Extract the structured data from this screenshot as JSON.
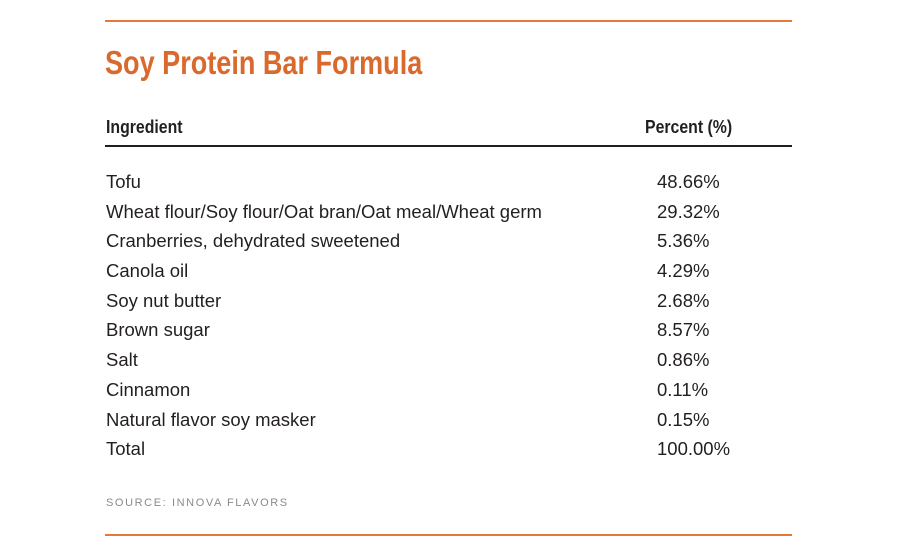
{
  "header": {
    "title": "Soy Protein Bar Formula"
  },
  "table": {
    "columns": [
      "Ingredient",
      "Percent (%)"
    ],
    "rows": [
      [
        "Tofu",
        "48.66%"
      ],
      [
        "Wheat flour/Soy flour/Oat bran/Oat meal/Wheat germ",
        "29.32%"
      ],
      [
        "Cranberries, dehydrated sweetened",
        "5.36%"
      ],
      [
        "Canola oil",
        "4.29%"
      ],
      [
        "Soy nut butter",
        "2.68%"
      ],
      [
        "Brown sugar",
        "8.57%"
      ],
      [
        "Salt",
        "0.86%"
      ],
      [
        "Cinnamon",
        "0.11%"
      ],
      [
        "Natural flavor soy masker",
        "0.15%"
      ],
      [
        "Total",
        "100.00%"
      ]
    ]
  },
  "footer": {
    "source": "SOURCE: INNOVA FLAVORS"
  }
}
